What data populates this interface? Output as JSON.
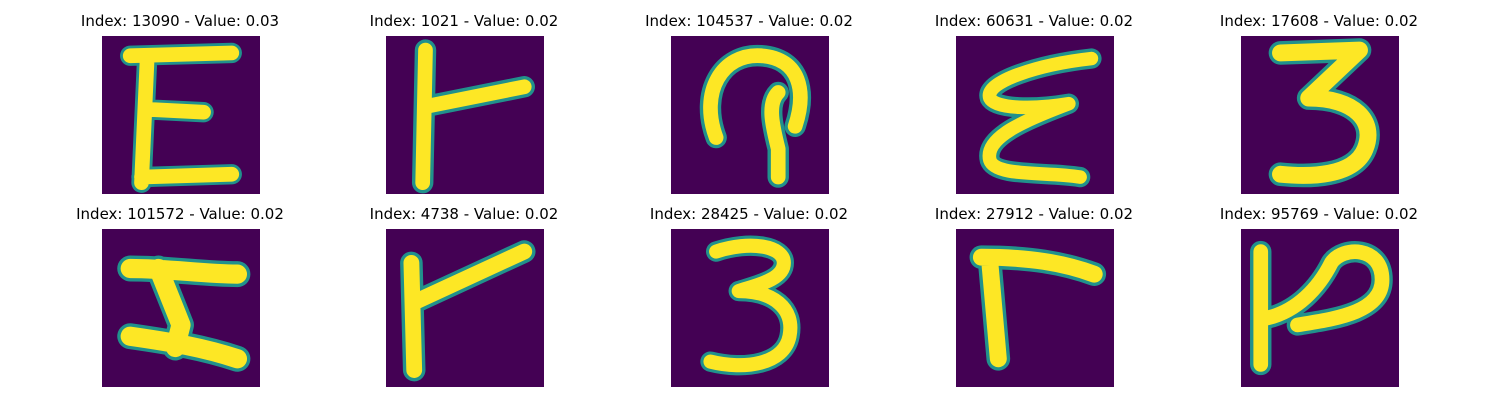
{
  "colors": {
    "background": "#440154",
    "stroke": "#fde725",
    "edge": "#21918c"
  },
  "panels": [
    {
      "title": "Index: 13090 - Value: 0.03",
      "glyph": "E-shape"
    },
    {
      "title": "Index: 1021 - Value: 0.02",
      "glyph": "T-sideways"
    },
    {
      "title": "Index: 104537 - Value: 0.02",
      "glyph": "loop-hook"
    },
    {
      "title": "Index: 60631 - Value: 0.02",
      "glyph": "epsilon"
    },
    {
      "title": "Index: 17608 - Value: 0.02",
      "glyph": "three"
    },
    {
      "title": "Index: 101572 - Value: 0.02",
      "glyph": "Z-reversed"
    },
    {
      "title": "Index: 4738 - Value: 0.02",
      "glyph": "T-sideways-slanted"
    },
    {
      "title": "Index: 28425 - Value: 0.02",
      "glyph": "three"
    },
    {
      "title": "Index: 27912 - Value: 0.02",
      "glyph": "T-sideways"
    },
    {
      "title": "Index: 95769 - Value: 0.02",
      "glyph": "P-sideways"
    }
  ]
}
